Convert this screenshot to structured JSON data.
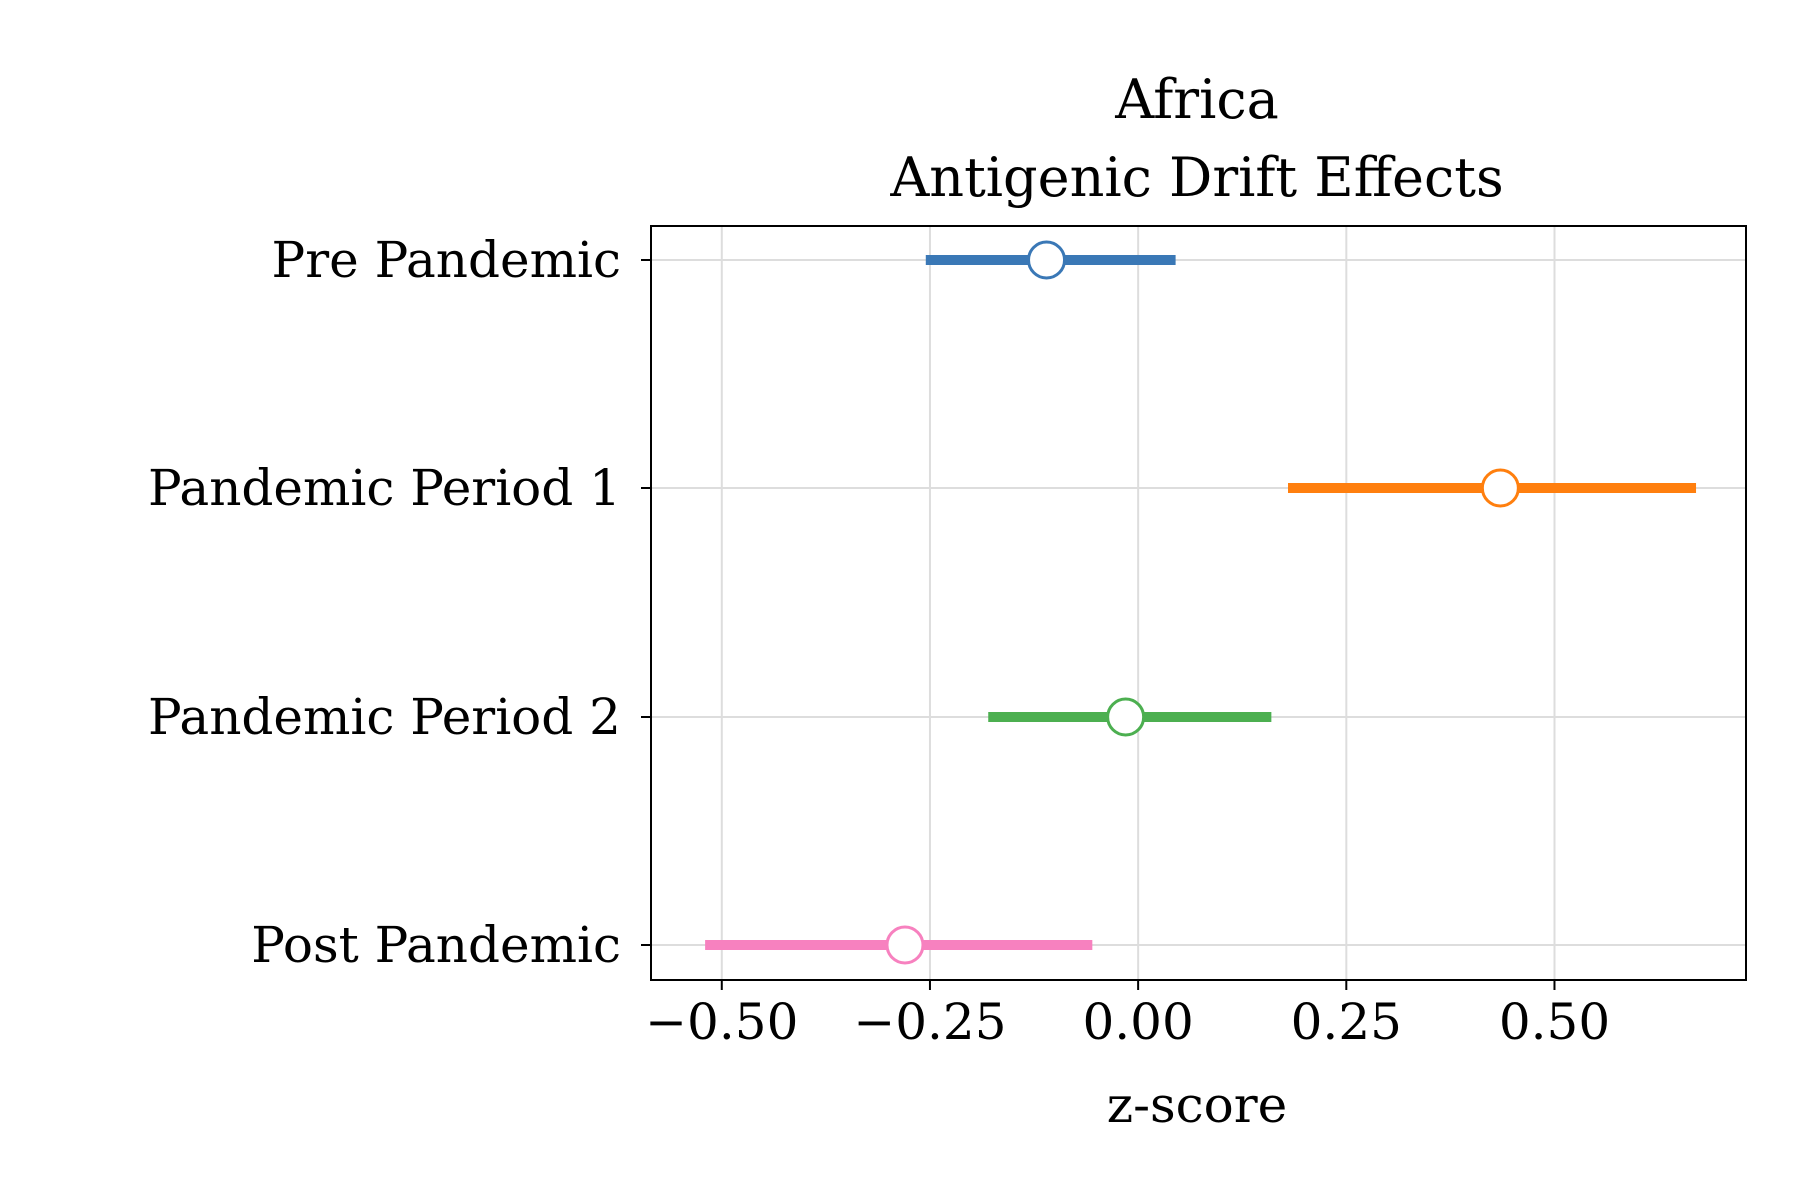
{
  "chart_data": {
    "type": "errorbar",
    "title_lines": [
      "Africa",
      "Antigenic Drift Effects"
    ],
    "xlabel": "z-score",
    "ylabel": "",
    "xlim": [
      -0.585,
      0.73
    ],
    "grid": true,
    "xticks": [
      -0.5,
      -0.25,
      0.0,
      0.25,
      0.5
    ],
    "xtick_labels": [
      "−0.50",
      "−0.25",
      "0.00",
      "0.25",
      "0.50"
    ],
    "categories": [
      "Pre Pandemic",
      "Pandemic Period 1",
      "Pandemic Period 2",
      "Post Pandemic"
    ],
    "series": [
      {
        "category": "Pre Pandemic",
        "estimate": -0.11,
        "ci_low": -0.255,
        "ci_high": 0.045,
        "color": "#3a78b6"
      },
      {
        "category": "Pandemic Period 1",
        "estimate": 0.435,
        "ci_low": 0.18,
        "ci_high": 0.67,
        "color": "#ff7f0e"
      },
      {
        "category": "Pandemic Period 2",
        "estimate": -0.015,
        "ci_low": -0.18,
        "ci_high": 0.16,
        "color": "#4caf50"
      },
      {
        "category": "Post Pandemic",
        "estimate": -0.28,
        "ci_low": -0.52,
        "ci_high": -0.055,
        "color": "#f781bf"
      }
    ]
  }
}
